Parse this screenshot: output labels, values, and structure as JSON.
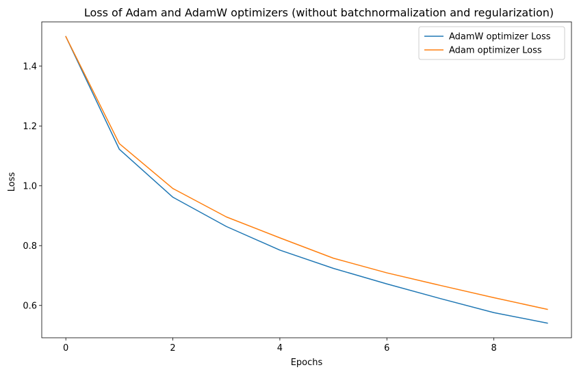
{
  "chart_data": {
    "type": "line",
    "title": "Loss of Adam and AdamW optimizers (without batchnormalization and regularization)",
    "xlabel": "Epochs",
    "ylabel": "Loss",
    "x": [
      0,
      1,
      2,
      3,
      4,
      5,
      6,
      7,
      8,
      9
    ],
    "xlim": [
      -0.45,
      9.45
    ],
    "ylim": [
      0.492,
      1.548
    ],
    "xticks": [
      0,
      2,
      4,
      6,
      8
    ],
    "yticks": [
      0.6,
      0.8,
      1.0,
      1.2,
      1.4
    ],
    "ytick_labels": [
      "0.6",
      "0.8",
      "1.0",
      "1.2",
      "1.4"
    ],
    "grid": false,
    "legend_position": "top-right",
    "series": [
      {
        "name": "AdamW optimizer Loss",
        "color": "#1f77b4",
        "values": [
          1.499,
          1.122,
          0.962,
          0.864,
          0.785,
          0.724,
          0.672,
          0.623,
          0.576,
          0.541
        ]
      },
      {
        "name": "Adam optimizer Loss",
        "color": "#ff7f0e",
        "values": [
          1.499,
          1.141,
          0.991,
          0.896,
          0.826,
          0.758,
          0.709,
          0.667,
          0.626,
          0.587
        ]
      }
    ]
  }
}
